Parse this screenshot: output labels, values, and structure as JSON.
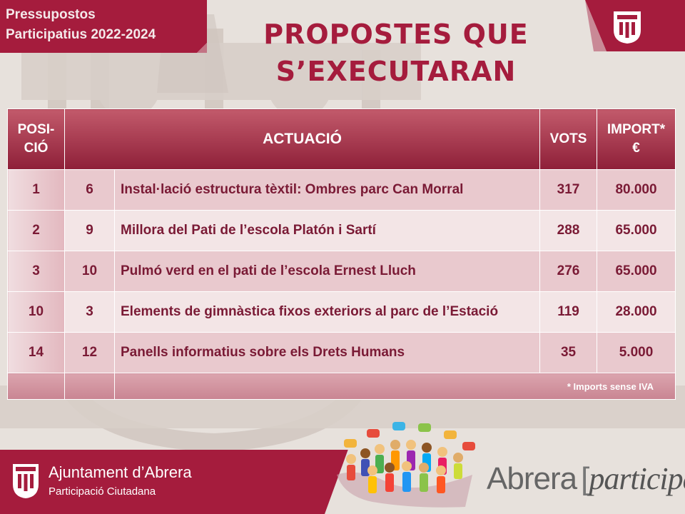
{
  "header": {
    "program_line1": "Pressupostos",
    "program_line2": "Participatius 2022-2024",
    "title_line1": "PROPOSTES QUE",
    "title_line2": "S’EXECUTARAN"
  },
  "table": {
    "headers": {
      "position": "POSI-CIÓ",
      "action": "ACTUACIÓ",
      "votes": "VOTS",
      "amount": "IMPORT* €"
    },
    "rows": [
      {
        "position": "1",
        "number": "6",
        "action": "Instal·lació estructura tèxtil: Ombres parc Can Morral",
        "votes": "317",
        "amount": "80.000"
      },
      {
        "position": "2",
        "number": "9",
        "action": "Millora del Pati de l’escola Platón i Sartí",
        "votes": "288",
        "amount": "65.000"
      },
      {
        "position": "3",
        "number": "10",
        "action": "Pulmó verd en el pati de l’escola Ernest Lluch",
        "votes": "276",
        "amount": "65.000"
      },
      {
        "position": "10",
        "number": "3",
        "action": "Elements de gimnàstica fixos exteriors al parc de l’Estació",
        "votes": "119",
        "amount": "28.000"
      },
      {
        "position": "14",
        "number": "12",
        "action": "Panells informatius sobre els Drets Humans",
        "votes": "35",
        "amount": "5.000"
      }
    ],
    "footnote": "* Imports sense IVA"
  },
  "footer": {
    "organization": "Ajuntament d’Abrera",
    "department": "Participació Ciutadana",
    "brand_main": "Abrera",
    "brand_bracket_open": "[",
    "brand_italic": "participa",
    "brand_bracket_close": "]"
  },
  "colors": {
    "accent": "#a51c3d",
    "header_cell": "#8e1f38",
    "row_odd": "#e9c9ce",
    "row_even": "#f3e5e6"
  },
  "icons": [
    "abrera-shield-icon",
    "people-crowd-icon"
  ]
}
